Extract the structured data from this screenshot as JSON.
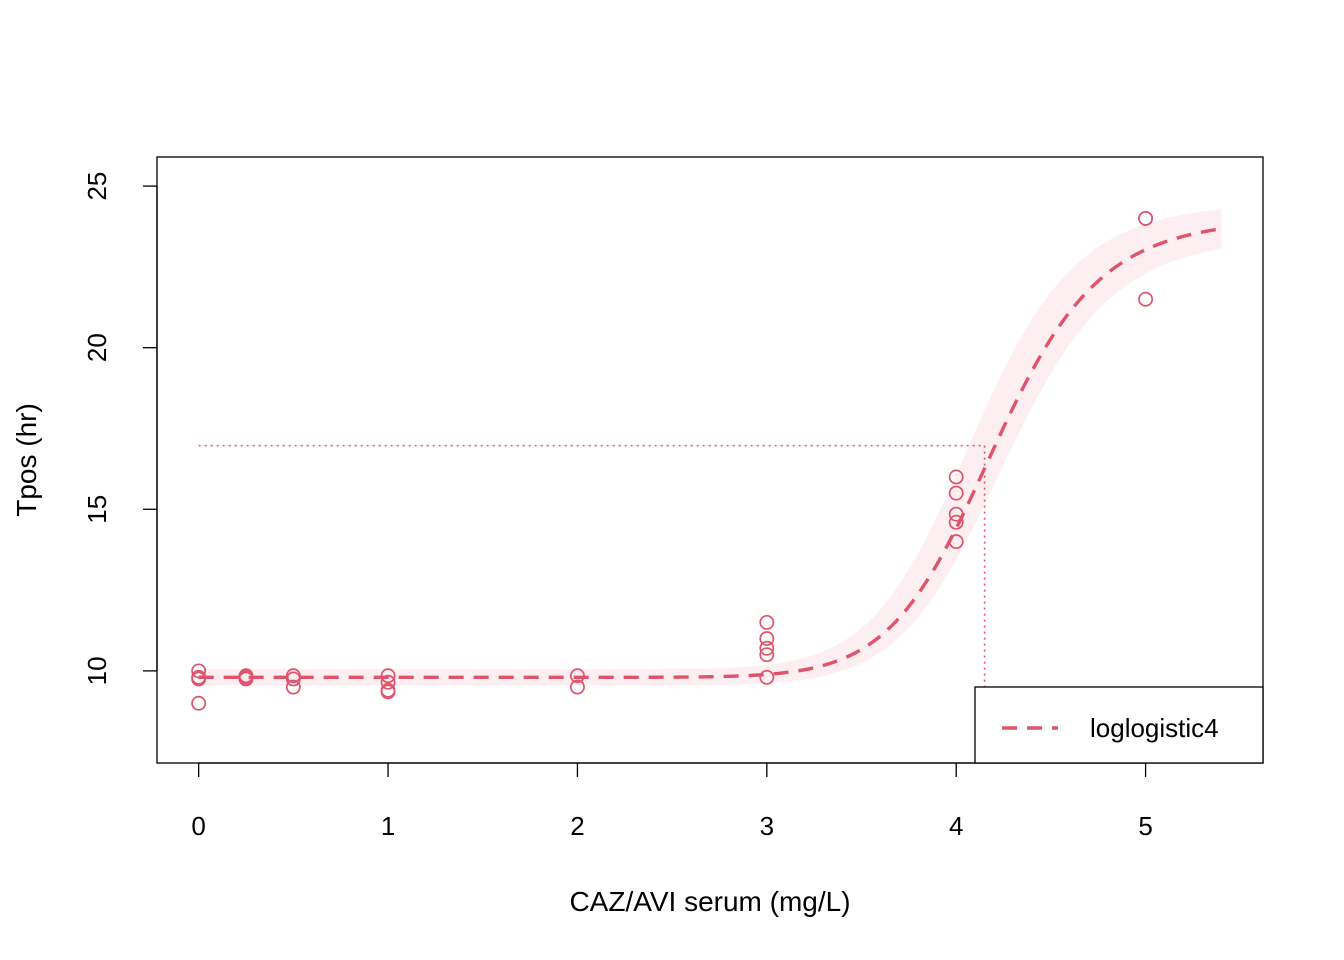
{
  "chart_data": {
    "type": "scatter",
    "title": "",
    "xlabel": "CAZ/AVI serum (mg/L)",
    "ylabel": "Tpos (hr)",
    "xlim": [
      -0.22,
      5.62
    ],
    "ylim": [
      7.15,
      25.9
    ],
    "x_ticks": [
      "0",
      "1",
      "2",
      "3",
      "4",
      "5"
    ],
    "y_ticks": [
      "10",
      "15",
      "20",
      "25"
    ],
    "grid": false,
    "legend_position": "bottom-right",
    "colors": {
      "series": "#DF536B",
      "band": "#FDEEF1",
      "axis": "#000000"
    },
    "series": [
      {
        "kind": "points",
        "points": [
          [
            0,
            10.0
          ],
          [
            0,
            9.8
          ],
          [
            0,
            9.75
          ],
          [
            0,
            9.0
          ],
          [
            0.25,
            9.85
          ],
          [
            0.25,
            9.8
          ],
          [
            0.25,
            9.75
          ],
          [
            0.5,
            9.85
          ],
          [
            0.5,
            9.75
          ],
          [
            0.5,
            9.5
          ],
          [
            1,
            9.85
          ],
          [
            1,
            9.65
          ],
          [
            1,
            9.4
          ],
          [
            1,
            9.35
          ],
          [
            2,
            9.85
          ],
          [
            2,
            9.5
          ],
          [
            3,
            11.5
          ],
          [
            3,
            11.0
          ],
          [
            3,
            10.7
          ],
          [
            3,
            10.5
          ],
          [
            3,
            9.8
          ],
          [
            4,
            16.0
          ],
          [
            4,
            15.5
          ],
          [
            4,
            14.85
          ],
          [
            4,
            14.6
          ],
          [
            4,
            14.0
          ],
          [
            5,
            24.0
          ],
          [
            5,
            24.0
          ],
          [
            5,
            21.5
          ]
        ]
      },
      {
        "kind": "fitted_curve",
        "name": "loglogistic4",
        "model": {
          "lower": 9.8,
          "upper": 24.0,
          "ed50": 4.2,
          "slope": 15.0
        },
        "x_range": [
          0,
          5.4
        ]
      }
    ],
    "confidence_band": {
      "lower_ci_model": {
        "lower": 9.55,
        "upper": 23.45,
        "ed50": 4.26,
        "slope": 15.0
      },
      "upper_ci_model": {
        "lower": 10.05,
        "upper": 24.5,
        "ed50": 4.09,
        "slope": 15.0
      }
    },
    "reference_lines": {
      "y": 16.97,
      "x": 4.15
    }
  }
}
